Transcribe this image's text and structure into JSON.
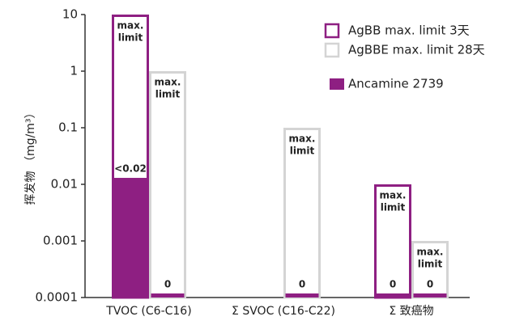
{
  "chart_data": {
    "type": "bar",
    "log": true,
    "y_label": "挥发物 （mg/m³）",
    "categories": [
      "TVOC (C6-C16)",
      "Σ SVOC (C16-C22)",
      "Σ 致癌物"
    ],
    "limit_label": [
      "max.",
      "limit"
    ],
    "series": [
      {
        "name": "AgBB max. limit 3天",
        "color": "#8e1f82",
        "style": "outline",
        "slot": 0,
        "values": [
          10,
          null,
          0.01
        ]
      },
      {
        "name": "AgBBE max. limit 28天",
        "color": "#d4d4d4",
        "style": "outline",
        "slot": 1,
        "values": [
          1,
          0.1,
          0.001
        ]
      },
      {
        "name": "Ancamine 2739",
        "color": "#8e1f82",
        "label_color": "#e8912e",
        "style": "fill",
        "values": [
          [
            0.013,
            0
          ],
          [
            null,
            0
          ],
          [
            0,
            0
          ]
        ],
        "value_labels": [
          [
            "<0.02",
            "0"
          ],
          [
            null,
            "0"
          ],
          [
            "0",
            "0"
          ]
        ]
      }
    ],
    "ylim": [
      0.0001,
      10
    ],
    "yticks": [
      10,
      1,
      0.1,
      0.01,
      0.001,
      0.0001
    ],
    "legend": "top-right"
  }
}
